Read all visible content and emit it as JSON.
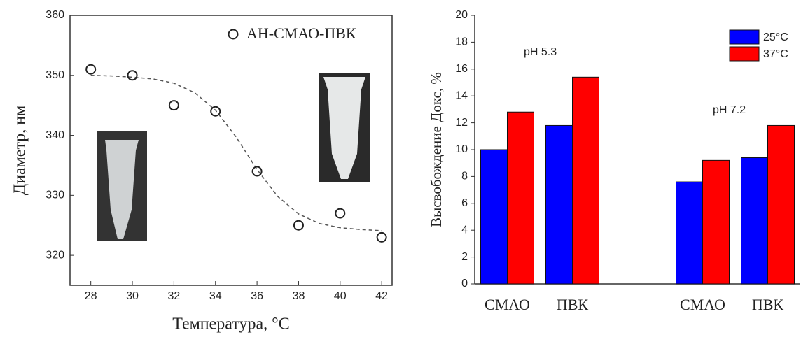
{
  "chart_data": [
    {
      "type": "scatter",
      "legend": "АН-СМАО-ПВК",
      "xlabel": "Температура, °C",
      "ylabel": "Диаметр, нм",
      "x": [
        28,
        30,
        32,
        34,
        36,
        38,
        40,
        42
      ],
      "values": [
        351,
        350,
        345,
        344,
        334,
        325,
        327,
        323
      ],
      "fit": {
        "x": [
          28,
          29,
          30,
          31,
          32,
          33,
          34,
          35,
          36,
          37,
          38,
          39,
          40,
          41,
          42
        ],
        "values": [
          350.0,
          349.9,
          349.7,
          349.4,
          348.7,
          347.1,
          344.2,
          339.7,
          334.3,
          329.8,
          326.9,
          325.3,
          324.6,
          324.3,
          324.1
        ]
      },
      "xlim": [
        27,
        42.5
      ],
      "ylim": [
        315,
        360
      ],
      "xticks": [
        28,
        30,
        32,
        34,
        36,
        38,
        40,
        42
      ],
      "yticks": [
        320,
        330,
        340,
        350,
        360
      ]
    },
    {
      "type": "bar",
      "ylabel": "Высвобождение Докс, %",
      "categories": [
        "СМАО",
        "ПВК",
        null,
        "СМАО",
        "ПВК"
      ],
      "series": [
        {
          "name": "25°C",
          "color": "#0000ff",
          "values": [
            10,
            11.8,
            null,
            7.6,
            9.4
          ]
        },
        {
          "name": "37°C",
          "color": "#ff0000",
          "values": [
            12.8,
            15.4,
            null,
            9.2,
            11.8
          ]
        }
      ],
      "annotations": [
        "pH 5.3",
        "pH 7.2"
      ],
      "ylim": [
        0,
        20
      ],
      "yticks": [
        0,
        2,
        4,
        6,
        8,
        10,
        12,
        14,
        16,
        18,
        20
      ],
      "legend_position": "upper right"
    }
  ]
}
